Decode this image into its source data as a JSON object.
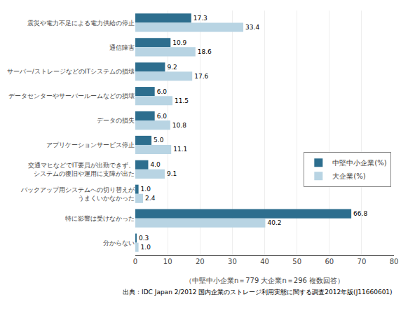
{
  "chart_data": {
    "type": "bar",
    "orientation": "horizontal",
    "categories": [
      "震災や電力不足による電力供給の停止",
      "通信障害",
      "サーバー/ストレージなどのITシステムの損壊",
      "データセンターやサーバールームなどの損壊",
      "データの損失",
      "アプリケーションサービス停止",
      "交通マヒなどでIT要員が出勤できず、\nシステムの復旧や運用に支障が出た",
      "バックアップ用システムへの切り替えが\nうまくいかなかった",
      "特に影響は受けなかった",
      "分からない"
    ],
    "series": [
      {
        "name": "中堅中小企業(%)",
        "color": "#2d6e8e",
        "values": [
          17.3,
          10.9,
          9.2,
          6.0,
          6.0,
          5.0,
          4.0,
          1.0,
          66.8,
          0.3
        ],
        "value_labels": [
          "17.3",
          "10.9",
          "9.2",
          "6.0",
          "6.0",
          "5.0",
          "4.0",
          "1.0",
          "66.8",
          "0.3"
        ]
      },
      {
        "name": "大企業(%)",
        "color": "#b8d4e3",
        "values": [
          33.4,
          18.6,
          17.6,
          11.5,
          10.8,
          11.1,
          9.1,
          2.4,
          40.2,
          1.0
        ],
        "value_labels": [
          "33.4",
          "18.6",
          "17.6",
          "11.5",
          "10.8",
          "11.1",
          "9.1",
          "2.4",
          "40.2",
          "1.0"
        ]
      }
    ],
    "xlabel": "（中堅中小企業n＝779 大企業n＝296 複数回答）",
    "xlim": [
      0,
      80
    ],
    "xticks": [
      0,
      10,
      20,
      30,
      40,
      50,
      60,
      70,
      80
    ],
    "grid": true,
    "legend": "right",
    "data_labels": true,
    "annotations": [
      "出典：IDC Japan 2/2012 国内企業のストレージ利用実態に関する調査2012年版(J11660601)"
    ]
  }
}
